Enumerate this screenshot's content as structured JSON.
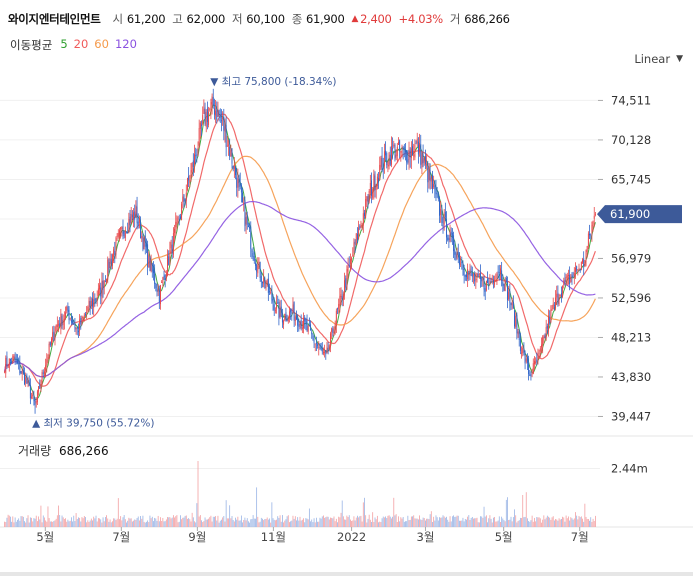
{
  "header": {
    "name": "와이지엔터테인먼트",
    "open_label": "시",
    "open": "61,200",
    "high_label": "고",
    "high": "62,000",
    "low_label": "저",
    "low": "60,100",
    "close_label": "종",
    "close": "61,900",
    "change": "2,400",
    "change_pct": "+4.03%",
    "volume_label": "거",
    "volume": "686,266",
    "up_icon": "triangle-up-icon"
  },
  "ma_legend": {
    "title": "이동평균",
    "items": [
      {
        "label": "5",
        "color": "#2e9f2e"
      },
      {
        "label": "20",
        "color": "#f05a5a"
      },
      {
        "label": "60",
        "color": "#f59a4a"
      },
      {
        "label": "120",
        "color": "#8a52e0"
      }
    ]
  },
  "scale_selector": {
    "label": "Linear",
    "icon": "chevron-down-icon"
  },
  "volume_legend": {
    "label": "거래량",
    "value": "686,266"
  },
  "chart_data": {
    "type": "candlestick",
    "y_ticks": [
      74511,
      70128,
      65745,
      61362,
      56979,
      52596,
      48213,
      43830,
      39447
    ],
    "y_tick_labels": [
      "74,511",
      "70,128",
      "65,745",
      "",
      "56,979",
      "52,596",
      "48,213",
      "43,830",
      "39,447"
    ],
    "ylim": [
      38500,
      77000
    ],
    "x_ticks": [
      "5월",
      "7월",
      "9월",
      "11월",
      "2022",
      "3월",
      "5월",
      "7월"
    ],
    "current_price": 61900,
    "current_price_label": "61,900",
    "max_marker": {
      "value": 75800,
      "label": "최고",
      "text": "75,800 (-18.34%)"
    },
    "min_marker": {
      "value": 39750,
      "label": "최저",
      "text": "39,750 (55.72%)"
    },
    "volume_ticks": [
      "2.44m"
    ],
    "volume_ylim": [
      0,
      3000000
    ],
    "colors": {
      "up": "#e8474a",
      "down": "#2f64c9",
      "accent": "#3d5a99"
    },
    "close_anchors": [
      [
        0,
        45200
      ],
      [
        8,
        45800
      ],
      [
        18,
        43500
      ],
      [
        26,
        40500
      ],
      [
        34,
        45000
      ],
      [
        44,
        49500
      ],
      [
        54,
        51000
      ],
      [
        62,
        49000
      ],
      [
        72,
        51500
      ],
      [
        82,
        53500
      ],
      [
        92,
        57500
      ],
      [
        102,
        60500
      ],
      [
        112,
        62000
      ],
      [
        122,
        57000
      ],
      [
        132,
        53000
      ],
      [
        142,
        58000
      ],
      [
        152,
        63000
      ],
      [
        162,
        68000
      ],
      [
        170,
        72500
      ],
      [
        178,
        74000
      ],
      [
        186,
        72000
      ],
      [
        196,
        67000
      ],
      [
        206,
        61000
      ],
      [
        216,
        56000
      ],
      [
        226,
        53000
      ],
      [
        236,
        50500
      ],
      [
        246,
        51000
      ],
      [
        256,
        49500
      ],
      [
        266,
        47500
      ],
      [
        274,
        45800
      ],
      [
        282,
        50000
      ],
      [
        292,
        55000
      ],
      [
        302,
        60000
      ],
      [
        312,
        64500
      ],
      [
        322,
        67500
      ],
      [
        332,
        69000
      ],
      [
        342,
        68500
      ],
      [
        352,
        69500
      ],
      [
        362,
        66000
      ],
      [
        372,
        62000
      ],
      [
        382,
        58500
      ],
      [
        392,
        56000
      ],
      [
        402,
        54500
      ],
      [
        412,
        54000
      ],
      [
        422,
        56000
      ],
      [
        432,
        52000
      ],
      [
        440,
        47500
      ],
      [
        448,
        44000
      ],
      [
        456,
        46000
      ],
      [
        464,
        50000
      ],
      [
        474,
        53500
      ],
      [
        484,
        55000
      ],
      [
        494,
        56500
      ],
      [
        500,
        60000
      ],
      [
        504,
        61900
      ]
    ]
  }
}
